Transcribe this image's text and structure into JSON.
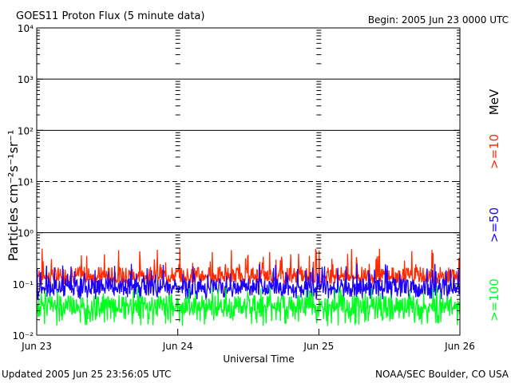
{
  "header": {
    "title": "GOES11 Proton Flux (5 minute data)",
    "begin": "Begin: 2005 Jun 23 0000 UTC"
  },
  "footer": {
    "updated": "Updated 2005 Jun 25 23:56:05 UTC",
    "credit": "NOAA/SEC Boulder, CO USA"
  },
  "chart_data": {
    "type": "line",
    "ylabel": "Particles cm⁻²s⁻¹sr⁻¹",
    "xlabel": "Universal Time",
    "y_scale": "log",
    "ylim": [
      0.01,
      10000
    ],
    "xlim_days": [
      0,
      3
    ],
    "y_ticks": [
      {
        "value": 0.01,
        "label": "10⁻²"
      },
      {
        "value": 0.1,
        "label": "10⁻¹"
      },
      {
        "value": 1,
        "label": "10⁰"
      },
      {
        "value": 10,
        "label": "10¹"
      },
      {
        "value": 100,
        "label": "10²"
      },
      {
        "value": 1000,
        "label": "10³"
      },
      {
        "value": 10000,
        "label": "10⁴"
      }
    ],
    "x_ticks": [
      {
        "day": 0,
        "label": "Jun 23"
      },
      {
        "day": 1,
        "label": "Jun 24"
      },
      {
        "day": 2,
        "label": "Jun 25"
      },
      {
        "day": 3,
        "label": "Jun 26"
      }
    ],
    "threshold_lines": [
      {
        "value": 1,
        "style": "solid"
      },
      {
        "value": 10,
        "style": "dashed"
      },
      {
        "value": 100,
        "style": "solid"
      },
      {
        "value": 1000,
        "style": "solid"
      }
    ],
    "grid": false,
    "legend_placement": "right",
    "unit_label": "MeV",
    "series": [
      {
        "name": ">=10",
        "color": "#ff2a00",
        "level_min": 0.1,
        "level_typical": 0.15,
        "level_max": 0.5
      },
      {
        "name": ">=50",
        "color": "#1a00ff",
        "level_min": 0.05,
        "level_typical": 0.09,
        "level_max": 0.25
      },
      {
        "name": ">=100",
        "color": "#00ff1e",
        "level_min": 0.015,
        "level_typical": 0.04,
        "level_max": 0.09
      }
    ]
  }
}
